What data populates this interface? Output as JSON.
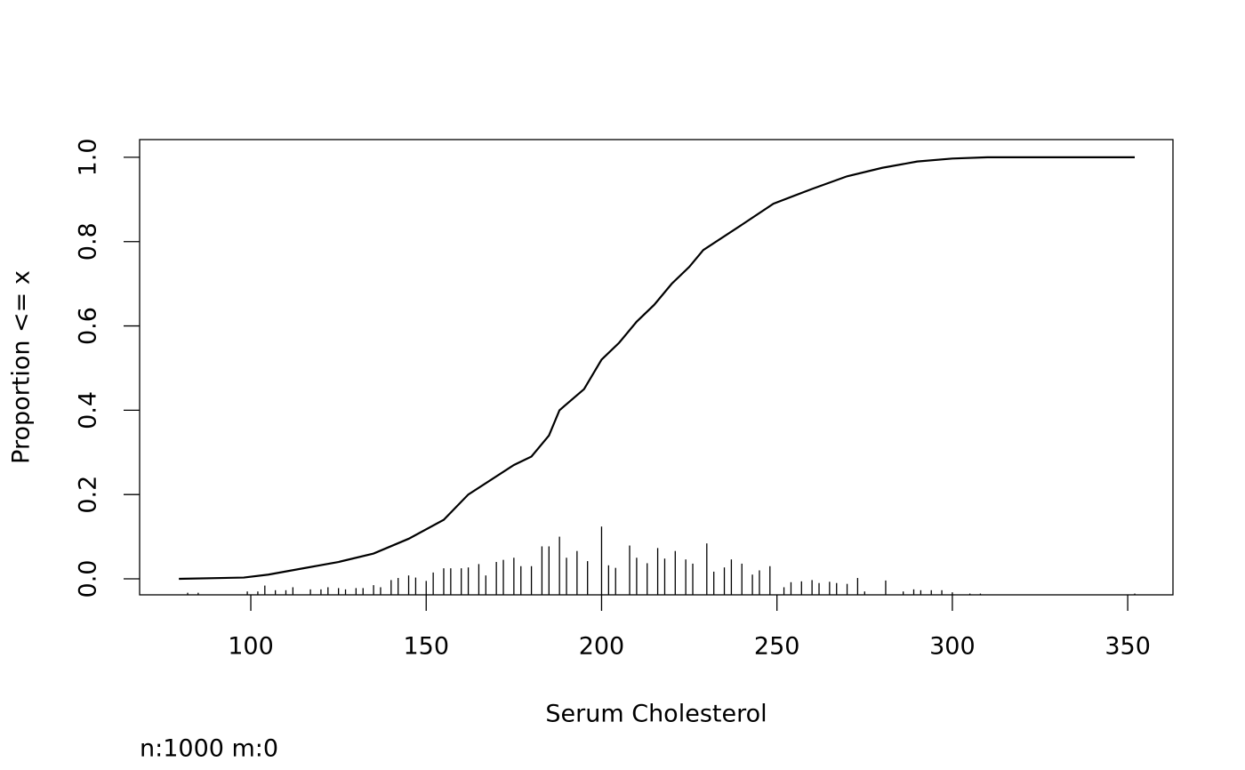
{
  "chart_data": {
    "type": "line",
    "xlabel": "Serum Cholesterol",
    "ylabel": "Proportion <= x",
    "footnote": "n:1000 m:0",
    "color": "#000000",
    "x": [
      79.5,
      98,
      105,
      115,
      125,
      135,
      145,
      155,
      162,
      175,
      180,
      185,
      188,
      195,
      200,
      205,
      210,
      215,
      220,
      225,
      229,
      240,
      249,
      260,
      270,
      280,
      290,
      300,
      310,
      352
    ],
    "values": [
      0,
      0.003,
      0.01,
      0.025,
      0.04,
      0.06,
      0.095,
      0.14,
      0.2,
      0.27,
      0.29,
      0.34,
      0.4,
      0.45,
      0.52,
      0.56,
      0.61,
      0.65,
      0.7,
      0.74,
      0.78,
      0.84,
      0.89,
      0.925,
      0.955,
      0.975,
      0.99,
      0.997,
      1.0,
      1.0
    ],
    "spikes": {
      "x": [
        82,
        85,
        99,
        102,
        104,
        107,
        110,
        112,
        117,
        120,
        122,
        125,
        127,
        130,
        132,
        135,
        137,
        140,
        142,
        145,
        147,
        150,
        152,
        155,
        157,
        160,
        162,
        165,
        167,
        170,
        172,
        175,
        177,
        180,
        183,
        185,
        188,
        190,
        193,
        196,
        200,
        202,
        204,
        208,
        210,
        213,
        216,
        218,
        221,
        224,
        226,
        230,
        232,
        235,
        237,
        240,
        243,
        245,
        248,
        252,
        254,
        257,
        260,
        262,
        265,
        267,
        270,
        273,
        275,
        281,
        286,
        289,
        291,
        294,
        297,
        300,
        305,
        308,
        352
      ],
      "values": [
        -0.033,
        -0.033,
        -0.03,
        -0.03,
        -0.016,
        -0.027,
        -0.027,
        -0.02,
        -0.025,
        -0.025,
        -0.02,
        -0.022,
        -0.025,
        -0.022,
        -0.022,
        -0.015,
        -0.02,
        -0.003,
        0.002,
        0.008,
        0.003,
        -0.005,
        0.015,
        0.025,
        0.025,
        0.025,
        0.027,
        0.035,
        0.008,
        0.04,
        0.045,
        0.05,
        0.03,
        0.03,
        0.077,
        0.077,
        0.1,
        0.05,
        0.066,
        0.042,
        0.124,
        0.032,
        0.026,
        0.079,
        0.05,
        0.037,
        0.073,
        0.048,
        0.066,
        0.046,
        0.036,
        0.084,
        0.017,
        0.027,
        0.046,
        0.036,
        0.01,
        0.02,
        0.03,
        -0.02,
        -0.008,
        -0.006,
        -0.003,
        -0.01,
        -0.007,
        -0.01,
        -0.012,
        0.002,
        -0.03,
        -0.004,
        -0.03,
        -0.025,
        -0.027,
        -0.027,
        -0.027,
        -0.032,
        -0.035,
        -0.035,
        -0.035
      ]
    },
    "xlim": [
      68.3,
      362.9
    ],
    "ylim": [
      -0.038,
      1.042
    ],
    "xticks": [
      100,
      150,
      200,
      250,
      300,
      350
    ],
    "yticks": [
      {
        "value": 0,
        "label": "0.0"
      },
      0.2,
      0.4,
      0.6,
      0.8,
      {
        "value": 1,
        "label": "1.0"
      }
    ]
  }
}
